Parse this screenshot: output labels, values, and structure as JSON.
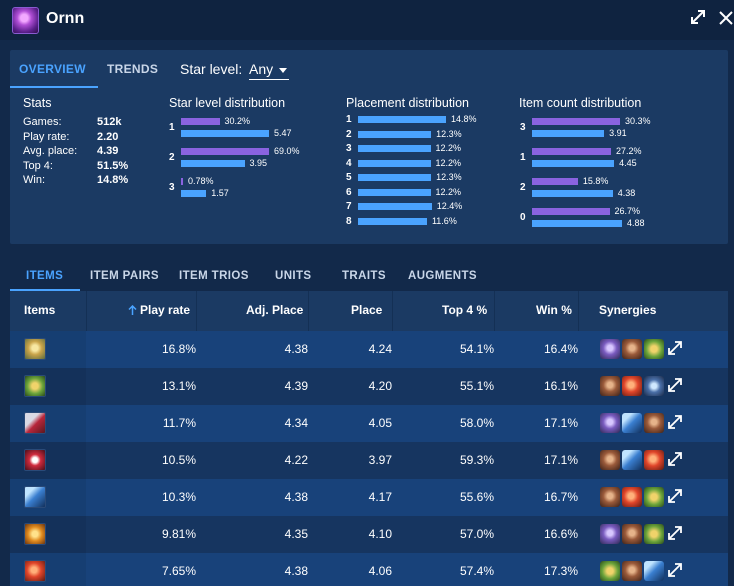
{
  "window": {
    "title": "Ornn",
    "expand_icon": "expand-icon",
    "close_icon": "close-icon"
  },
  "overview_tabs": [
    {
      "label": "OVERVIEW",
      "active": true
    },
    {
      "label": "TRENDS",
      "active": false
    }
  ],
  "star_filter": {
    "label": "Star level:",
    "value": "Any"
  },
  "stats": {
    "title": "Stats",
    "rows": [
      {
        "label": "Games:",
        "value": "512k"
      },
      {
        "label": "Play rate:",
        "value": "2.20"
      },
      {
        "label": "Avg. place:",
        "value": "4.39"
      },
      {
        "label": "Top 4:",
        "value": "51.5%"
      },
      {
        "label": "Win:",
        "value": "14.8%"
      }
    ]
  },
  "star_distribution": {
    "title": "Star level distribution",
    "rows": [
      {
        "key": "1",
        "share": "30.2%",
        "share_value": 30.2,
        "place": "5.47",
        "place_value": 5.47
      },
      {
        "key": "2",
        "share": "69.0%",
        "share_value": 69.0,
        "place": "3.95",
        "place_value": 3.95
      },
      {
        "key": "3",
        "share": "0.78%",
        "share_value": 0.78,
        "place": "1.57",
        "place_value": 1.57
      }
    ]
  },
  "placement_distribution": {
    "title": "Placement distribution",
    "rows": [
      {
        "key": "1",
        "label": "14.8%",
        "value": 14.8
      },
      {
        "key": "2",
        "label": "12.3%",
        "value": 12.3
      },
      {
        "key": "3",
        "label": "12.2%",
        "value": 12.2
      },
      {
        "key": "4",
        "label": "12.2%",
        "value": 12.2
      },
      {
        "key": "5",
        "label": "12.3%",
        "value": 12.3
      },
      {
        "key": "6",
        "label": "12.2%",
        "value": 12.2
      },
      {
        "key": "7",
        "label": "12.4%",
        "value": 12.4
      },
      {
        "key": "8",
        "label": "11.6%",
        "value": 11.6
      }
    ]
  },
  "item_count_distribution": {
    "title": "Item count distribution",
    "rows": [
      {
        "key": "3",
        "share": "30.3%",
        "share_value": 30.3,
        "place": "3.91",
        "place_value": 3.91
      },
      {
        "key": "1",
        "share": "27.2%",
        "share_value": 27.2,
        "place": "4.45",
        "place_value": 4.45
      },
      {
        "key": "2",
        "share": "15.8%",
        "share_value": 15.8,
        "place": "4.38",
        "place_value": 4.38
      },
      {
        "key": "0",
        "share": "26.7%",
        "share_value": 26.7,
        "place": "4.88",
        "place_value": 4.88
      }
    ]
  },
  "table_tabs": [
    {
      "label": "ITEMS",
      "active": true
    },
    {
      "label": "ITEM PAIRS",
      "active": false
    },
    {
      "label": "ITEM TRIOS",
      "active": false
    },
    {
      "label": "UNITS",
      "active": false
    },
    {
      "label": "TRAITS",
      "active": false
    },
    {
      "label": "AUGMENTS",
      "active": false
    }
  ],
  "table": {
    "headers": {
      "items": "Items",
      "play_rate": "Play rate",
      "adj_place": "Adj. Place",
      "place": "Place",
      "top4": "Top 4 %",
      "win": "Win %",
      "synergies": "Synergies"
    },
    "sort_icon": "arrow-up-icon",
    "colors": {
      "purple_bar": "#8a63e0",
      "blue_bar": "#4aa3ff",
      "accent": "#4aa3ff"
    },
    "rows": [
      {
        "item_icon": "item-gold-icon",
        "play_rate": "16.8%",
        "adj_place": "4.38",
        "place": "4.24",
        "top4": "54.1%",
        "win": "16.4%",
        "synergies": [
          "purple-wing-icon",
          "brown-shield-icon",
          "green-gold-icon"
        ]
      },
      {
        "item_icon": "item-green-gold-icon",
        "play_rate": "13.1%",
        "adj_place": "4.39",
        "place": "4.20",
        "top4": "55.1%",
        "win": "16.1%",
        "synergies": [
          "brown-shield-icon",
          "red-orb-icon",
          "blue-crest-icon"
        ]
      },
      {
        "item_icon": "item-red-blade-icon",
        "play_rate": "11.7%",
        "adj_place": "4.34",
        "place": "4.05",
        "top4": "58.0%",
        "win": "17.1%",
        "synergies": [
          "purple-wing-icon",
          "blue-blade-icon",
          "brown-shield-icon"
        ]
      },
      {
        "item_icon": "item-red-crest-icon",
        "play_rate": "10.5%",
        "adj_place": "4.22",
        "place": "3.97",
        "top4": "59.3%",
        "win": "17.1%",
        "synergies": [
          "brown-shield-icon",
          "blue-blade-icon",
          "red-orb-icon"
        ]
      },
      {
        "item_icon": "item-blue-blade-icon",
        "play_rate": "10.3%",
        "adj_place": "4.38",
        "place": "4.17",
        "top4": "55.6%",
        "win": "16.7%",
        "synergies": [
          "brown-shield-icon",
          "red-orb-icon",
          "green-gold-icon"
        ]
      },
      {
        "item_icon": "item-orange-gem-icon",
        "play_rate": "9.81%",
        "adj_place": "4.35",
        "place": "4.10",
        "top4": "57.0%",
        "win": "16.6%",
        "synergies": [
          "purple-wing-icon",
          "brown-shield-icon",
          "green-gold-icon"
        ]
      },
      {
        "item_icon": "item-red-orb-icon",
        "play_rate": "7.65%",
        "adj_place": "4.38",
        "place": "4.06",
        "top4": "57.4%",
        "win": "17.3%",
        "synergies": [
          "green-gold-icon",
          "brown-shield-icon",
          "blue-blade-icon"
        ]
      }
    ]
  }
}
